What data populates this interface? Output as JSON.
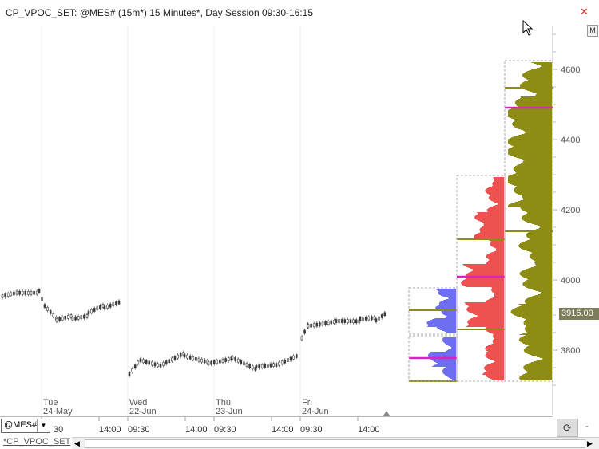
{
  "window": {
    "title": "CP_VPOC_SET: @MES# (15m*) 15 Minutes*, Day Session 09:30-16:15",
    "close_glyph": "✕",
    "m_button": "M"
  },
  "price_axis": {
    "ticks": [
      "4600",
      "4400",
      "4200",
      "4000",
      "3800"
    ],
    "current_price": "3916.00"
  },
  "date_labels": [
    {
      "day": "Tue",
      "date": "24-May"
    },
    {
      "day": "Wed",
      "date": "22-Jun"
    },
    {
      "day": "Thu",
      "date": "23-Jun"
    },
    {
      "day": "Fri",
      "date": "24-Jun"
    }
  ],
  "time_axis": [
    "30",
    "14:00",
    "09:30",
    "14:00",
    "09:30",
    "14:00",
    "09:30",
    "14:00"
  ],
  "bottom": {
    "symbol": "@MES#",
    "tab_label": "*CP_VPOC_SET",
    "dash": "-"
  },
  "colors": {
    "olive": "#8d8d16",
    "red": "#ef5050",
    "blue": "#6e6ef0",
    "vpoc": "#e020c0",
    "candle": "#3a3a3a"
  }
}
